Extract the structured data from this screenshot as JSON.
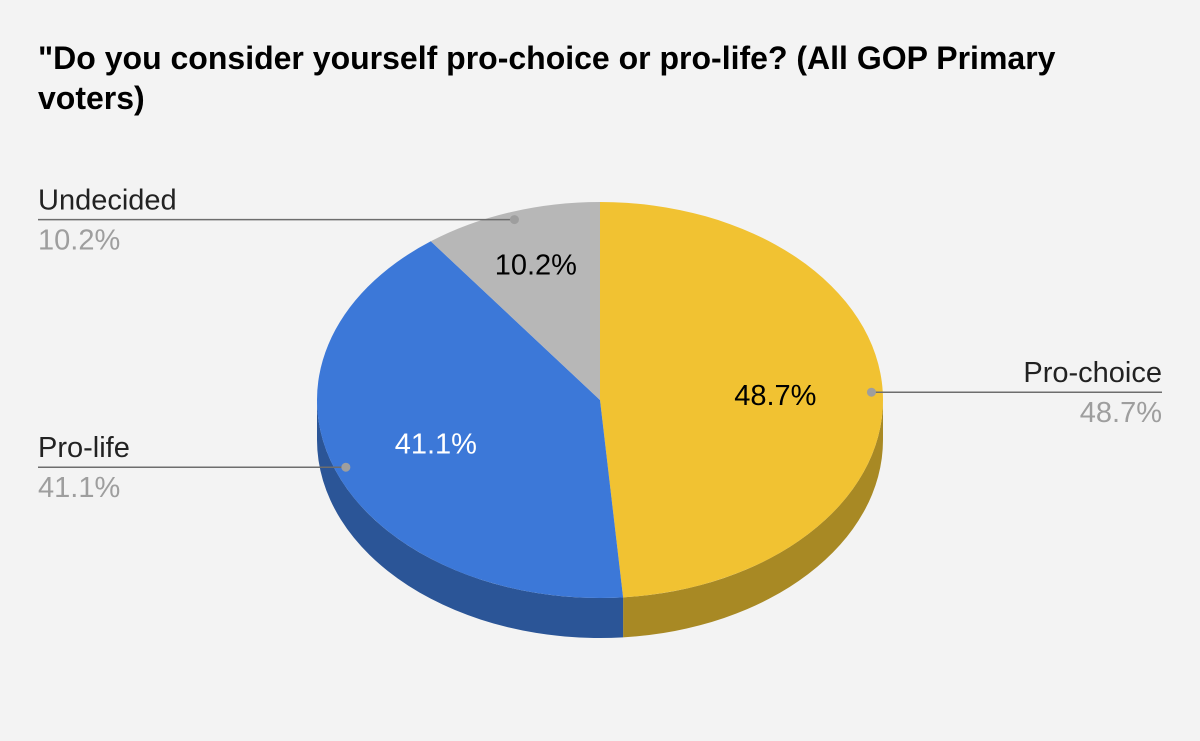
{
  "chart_data": {
    "type": "pie",
    "style": "3d",
    "title": "\"Do you consider yourself pro-choice or pro-life? (All GOP Primary voters)",
    "slices": [
      {
        "label": "Pro-choice",
        "value": 48.7,
        "display": "48.7%",
        "color": "#f1c232",
        "side_color": "#a88924",
        "text_color": "#000000",
        "legend_side": "right"
      },
      {
        "label": "Pro-life",
        "value": 41.1,
        "display": "41.1%",
        "color": "#3c78d8",
        "side_color": "#2b5597",
        "text_color": "#ffffff",
        "legend_side": "left"
      },
      {
        "label": "Undecided",
        "value": 10.2,
        "display": "10.2%",
        "color": "#b7b7b7",
        "side_color": "#808080",
        "text_color": "#000000",
        "legend_side": "left"
      }
    ],
    "legend": "labeled callouts"
  }
}
